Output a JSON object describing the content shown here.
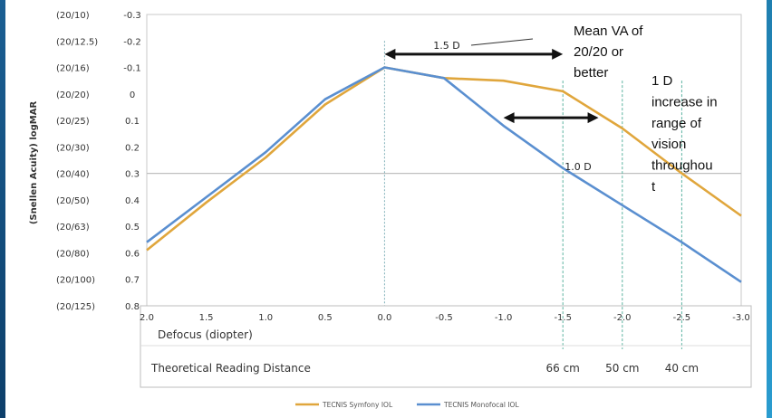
{
  "chart_data": {
    "type": "line",
    "ylabel": "(Snellen Acuity) logMAR",
    "xlabel": "Defocus (diopter)",
    "x": [
      2.0,
      1.5,
      1.0,
      0.5,
      0.0,
      -0.5,
      -1.0,
      -1.5,
      -2.0,
      -2.5,
      -3.0
    ],
    "x_tick_labels": [
      "2.0",
      "1.5",
      "1.0",
      "0.5",
      "0.0",
      "-0.5",
      "-1.0",
      "-1.5",
      "-2.0",
      "-2.5",
      "-3.0"
    ],
    "xlim": [
      2.0,
      -3.0
    ],
    "ylim": [
      -0.3,
      0.8
    ],
    "y_ticks": [
      -0.3,
      -0.2,
      -0.1,
      0,
      0.1,
      0.2,
      0.3,
      0.4,
      0.5,
      0.6,
      0.7,
      0.8
    ],
    "y_tick_labels": [
      "-0.3",
      "-0.2",
      "-0.1",
      "0",
      "0.1",
      "0.2",
      "0.3",
      "0.4",
      "0.5",
      "0.6",
      "0.7",
      "0.8"
    ],
    "snellen_labels": [
      "(20/10)",
      "(20/12.5)",
      "(20/16)",
      "(20/20)",
      "(20/25)",
      "(20/30)",
      "(20/40)",
      "(20/50)",
      "(20/63)",
      "(20/80)",
      "(20/100)",
      "(20/125)"
    ],
    "y_inverted": true,
    "reference_line_y": 0.3,
    "series": [
      {
        "name": "TECNIS Symfony IOL",
        "color": "#e0a63c",
        "values": [
          0.59,
          0.41,
          0.24,
          0.04,
          -0.1,
          -0.06,
          -0.05,
          -0.01,
          0.13,
          0.3,
          0.46
        ]
      },
      {
        "name": "TECNIS Monofocal IOL",
        "color": "#5a8fd0",
        "values": [
          0.56,
          0.39,
          0.22,
          0.02,
          -0.1,
          -0.06,
          0.12,
          0.28,
          0.42,
          0.56,
          0.71
        ]
      }
    ],
    "vertical_guides_x": [
      0.0,
      -1.5,
      -2.0,
      -2.5
    ],
    "legend_placement": "bottom-center",
    "annotations": [
      {
        "text": "1.5 D",
        "arrow_from_x": 0.0,
        "arrow_to_x": -1.5,
        "arrow_y": -0.15
      },
      {
        "text": "1.0 D",
        "arrow_from_x": -1.0,
        "arrow_to_x": -1.8,
        "arrow_y": 0.09
      }
    ],
    "callout_mean_va": [
      "Mean VA of",
      "20/20 or",
      "better"
    ],
    "callout_range": [
      "1 D",
      "increase in",
      "range of",
      "vision",
      "throughou",
      "t"
    ],
    "panel": {
      "reading_distance_label": "Theoretical Reading Distance",
      "distances": [
        {
          "x": -1.5,
          "label": "66 cm"
        },
        {
          "x": -2.0,
          "label": "50 cm"
        },
        {
          "x": -2.5,
          "label": "40 cm"
        }
      ]
    }
  }
}
